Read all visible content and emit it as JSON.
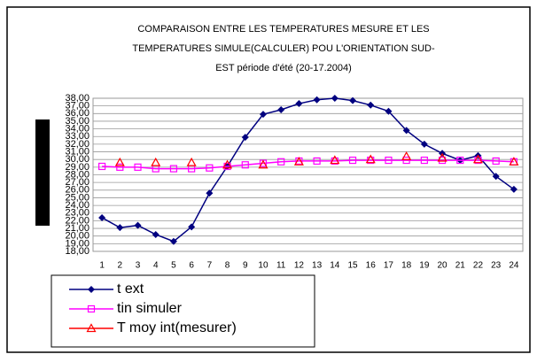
{
  "chart_data": {
    "type": "line",
    "title": [
      "COMPARAISON ENTRE LES TEMPERATURES MESURE ET LES",
      "TEMPERATURES SIMULE(CALCULER) POU L'ORIENTATION SUD-",
      "EST période d'été (20-17.2004)"
    ],
    "categories": [
      "1",
      "2",
      "3",
      "4",
      "5",
      "6",
      "7",
      "8",
      "9",
      "10",
      "11",
      "12",
      "13",
      "14",
      "15",
      "16",
      "17",
      "18",
      "19",
      "20",
      "21",
      "22",
      "23",
      "24"
    ],
    "series": [
      {
        "name": "t ext",
        "color": "#000080",
        "marker": "diamond",
        "values": [
          22.4,
          21.1,
          21.4,
          20.2,
          19.3,
          21.2,
          25.6,
          29.1,
          32.9,
          35.9,
          36.5,
          37.3,
          37.8,
          38.0,
          37.7,
          37.1,
          36.3,
          33.8,
          32.0,
          30.8,
          29.9,
          30.5,
          27.8,
          26.1
        ]
      },
      {
        "name": "tin simuler",
        "color": "#ff00ff",
        "marker": "square",
        "values": [
          29.1,
          29.0,
          29.0,
          28.8,
          28.8,
          28.8,
          28.9,
          29.1,
          29.3,
          29.5,
          29.7,
          29.8,
          29.8,
          29.8,
          29.9,
          29.9,
          29.9,
          29.9,
          29.9,
          29.9,
          29.9,
          29.9,
          29.8,
          29.7
        ]
      },
      {
        "name": "T moy int(mesurer)",
        "color": "#ff0000",
        "marker": "triangle",
        "values": [
          null,
          29.6,
          null,
          29.6,
          null,
          29.6,
          null,
          29.3,
          null,
          29.3,
          null,
          29.7,
          null,
          29.9,
          null,
          30.0,
          null,
          30.4,
          null,
          30.2,
          null,
          30.0,
          null,
          29.7
        ]
      }
    ],
    "ylim": [
      18,
      38
    ],
    "yticks": [
      {
        "value": 18,
        "label": "18,00"
      },
      {
        "value": 19,
        "label": "19,00"
      },
      {
        "value": 20,
        "label": "20,00"
      },
      {
        "value": 21,
        "label": "21,00"
      },
      {
        "value": 22,
        "label": "22,00"
      },
      {
        "value": 23,
        "label": "23,00"
      },
      {
        "value": 24,
        "label": "24,00"
      },
      {
        "value": 25,
        "label": "25,00"
      },
      {
        "value": 26,
        "label": "26,00"
      },
      {
        "value": 27,
        "label": "27,00"
      },
      {
        "value": 28,
        "label": "28,00"
      },
      {
        "value": 29,
        "label": "29,00"
      },
      {
        "value": 30,
        "label": "30,00"
      },
      {
        "value": 31,
        "label": "31,00"
      },
      {
        "value": 32,
        "label": "32,00"
      },
      {
        "value": 33,
        "label": "33,00"
      },
      {
        "value": 34,
        "label": "34,00"
      },
      {
        "value": 35,
        "label": "35,00"
      },
      {
        "value": 36,
        "label": "36,00"
      },
      {
        "value": 37,
        "label": "37,00"
      },
      {
        "value": 38,
        "label": "38,00"
      }
    ],
    "grid": true
  }
}
